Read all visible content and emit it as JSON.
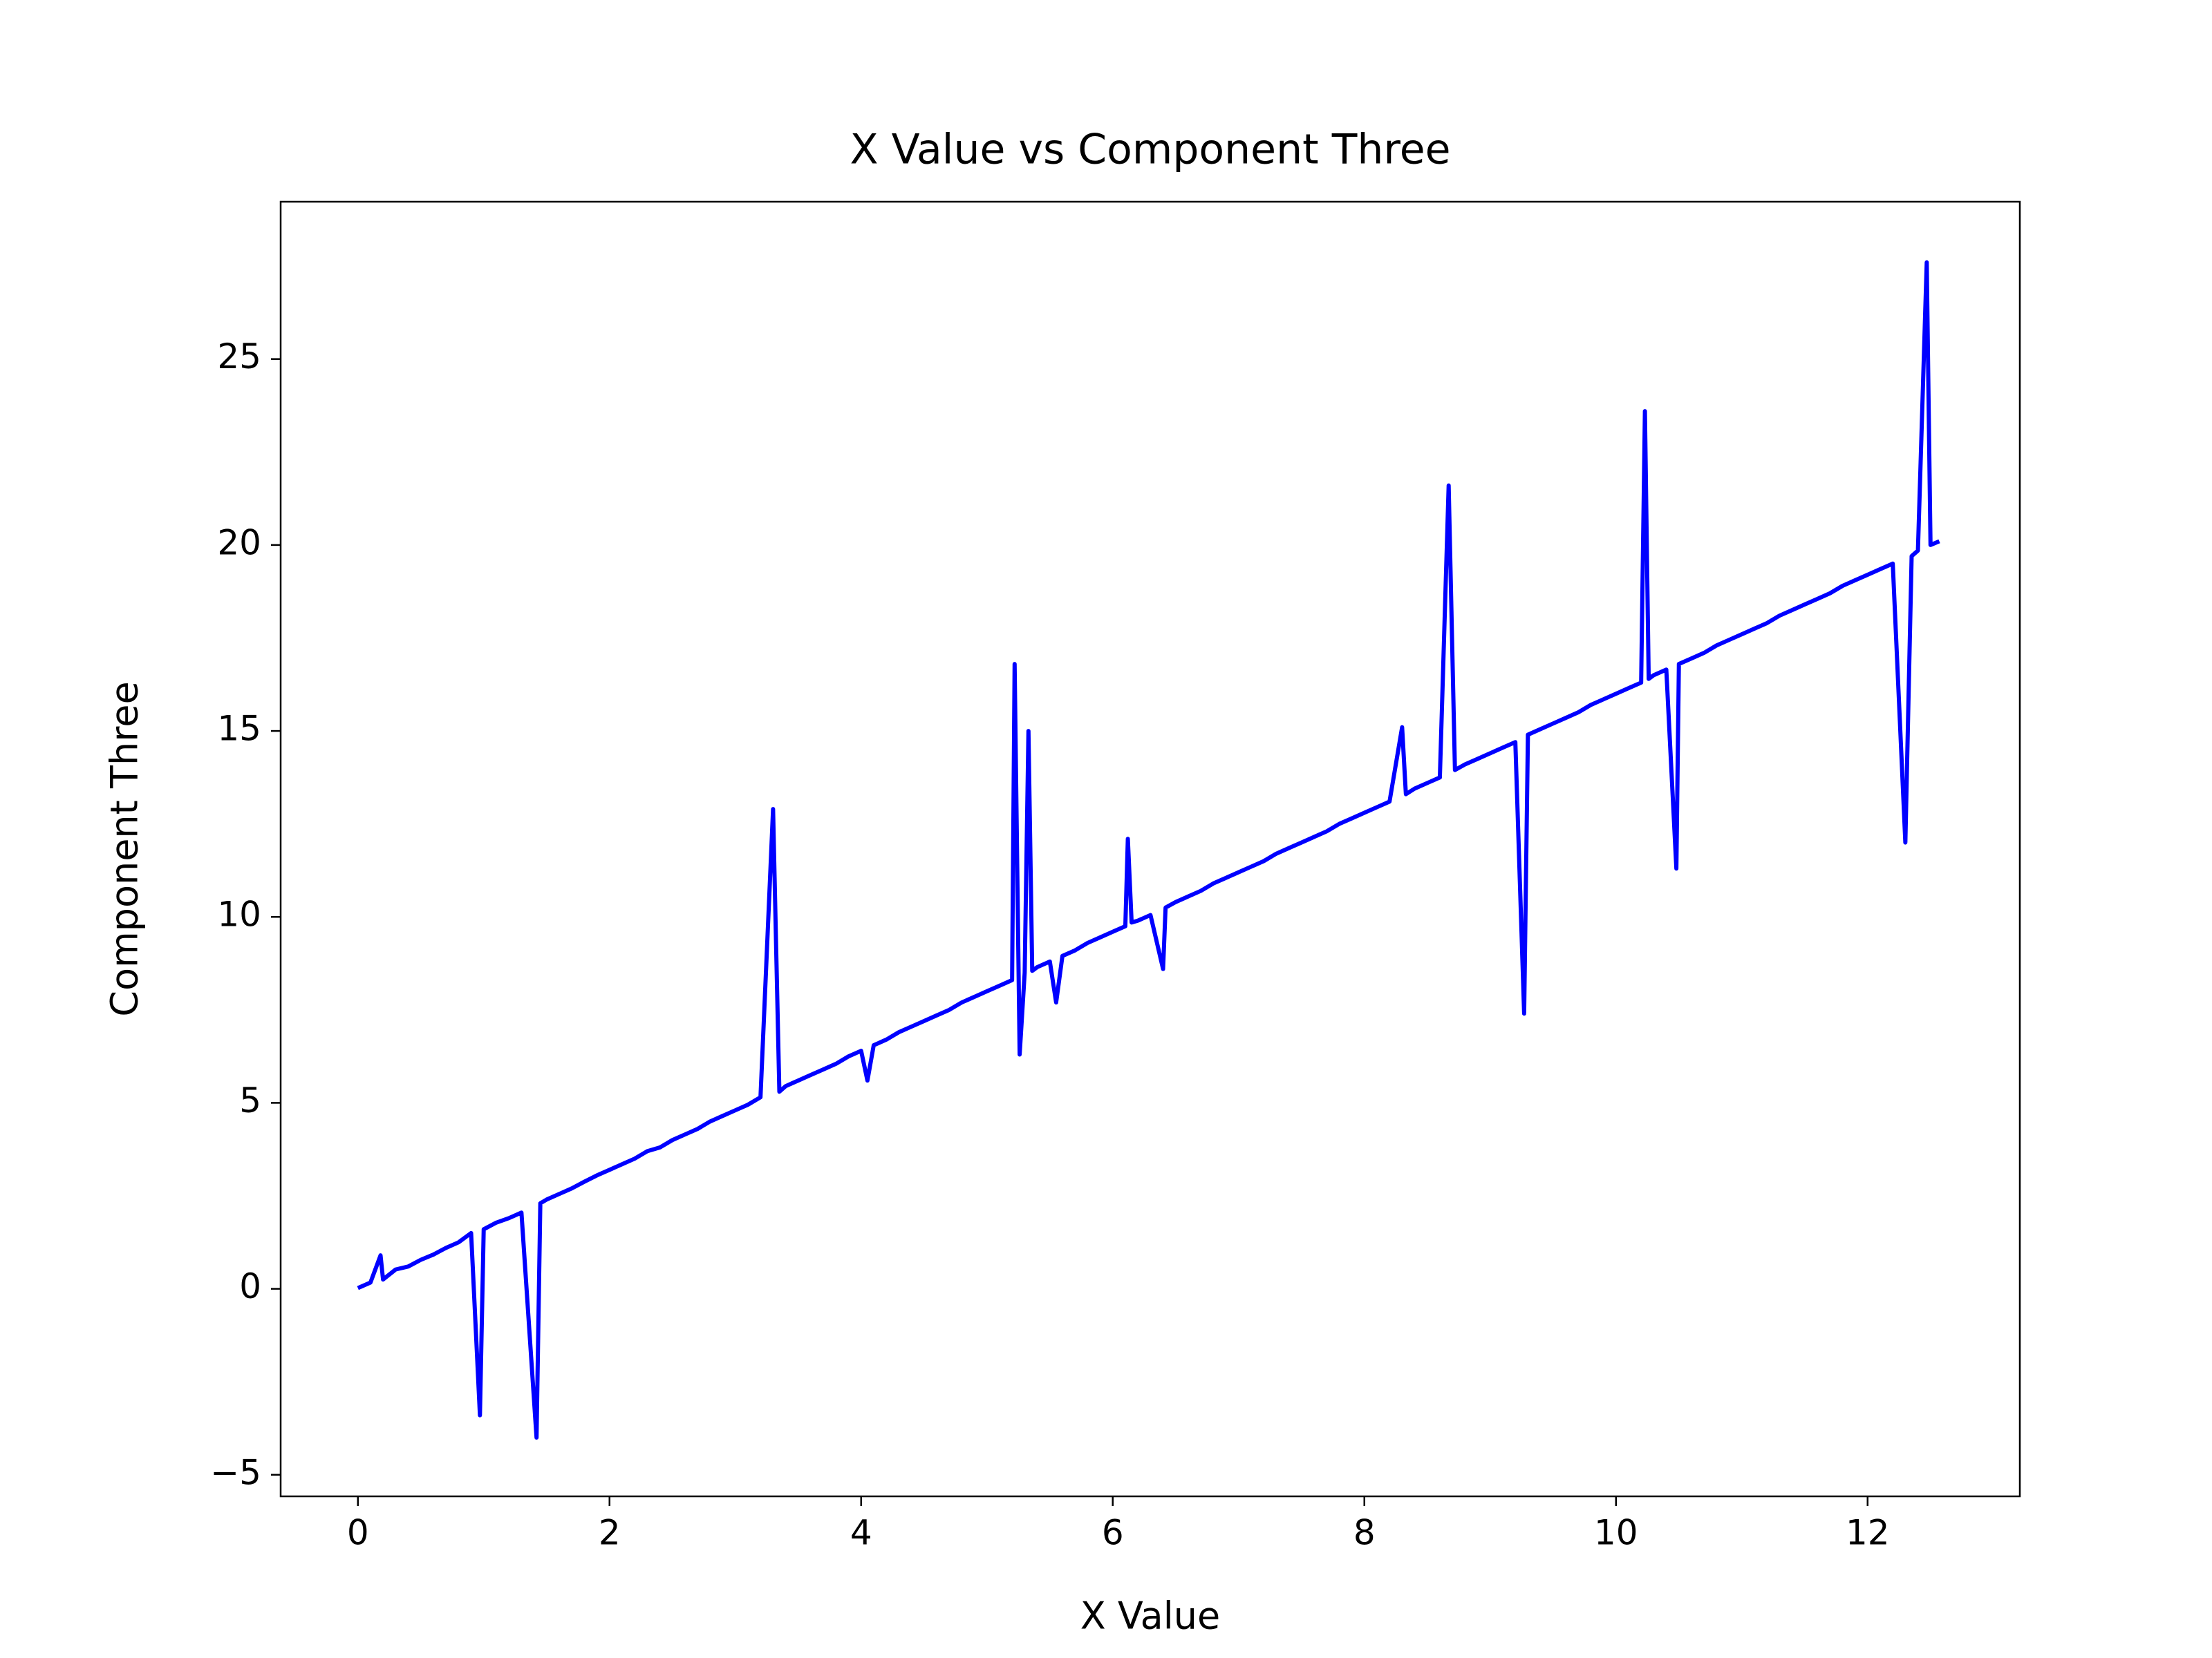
{
  "chart_data": {
    "type": "line",
    "title": "X Value vs Component Three",
    "xlabel": "X Value",
    "ylabel": "Component Three",
    "color": "#0000ff",
    "x": [
      0,
      0.1,
      0.18,
      0.2,
      0.3,
      0.4,
      0.5,
      0.6,
      0.7,
      0.8,
      0.9,
      0.97,
      1.0,
      1.1,
      1.2,
      1.3,
      1.42,
      1.45,
      1.5,
      1.6,
      1.7,
      1.8,
      1.9,
      2.0,
      2.1,
      2.2,
      2.3,
      2.4,
      2.5,
      2.6,
      2.7,
      2.8,
      2.9,
      3.0,
      3.1,
      3.2,
      3.3,
      3.35,
      3.4,
      3.5,
      3.6,
      3.7,
      3.8,
      3.9,
      4.0,
      4.05,
      4.1,
      4.2,
      4.3,
      4.4,
      4.5,
      4.6,
      4.7,
      4.8,
      4.9,
      5.0,
      5.1,
      5.2,
      5.22,
      5.26,
      5.3,
      5.33,
      5.36,
      5.4,
      5.5,
      5.55,
      5.6,
      5.7,
      5.8,
      5.9,
      6.0,
      6.1,
      6.12,
      6.15,
      6.2,
      6.3,
      6.4,
      6.42,
      6.5,
      6.6,
      6.7,
      6.8,
      6.9,
      7.0,
      7.1,
      7.2,
      7.3,
      7.4,
      7.5,
      7.6,
      7.7,
      7.8,
      7.9,
      8.0,
      8.1,
      8.2,
      8.3,
      8.33,
      8.4,
      8.5,
      8.6,
      8.67,
      8.72,
      8.8,
      8.9,
      9.0,
      9.1,
      9.2,
      9.27,
      9.3,
      9.4,
      9.5,
      9.6,
      9.7,
      9.8,
      9.9,
      10.0,
      10.1,
      10.2,
      10.23,
      10.26,
      10.3,
      10.4,
      10.48,
      10.5,
      10.6,
      10.7,
      10.8,
      10.9,
      11.0,
      11.1,
      11.2,
      11.3,
      11.4,
      11.5,
      11.6,
      11.7,
      11.8,
      11.9,
      12.0,
      12.1,
      12.2,
      12.3,
      12.35,
      12.4,
      12.47,
      12.5,
      12.57
    ],
    "values": [
      0.02,
      0.17,
      0.9,
      0.25,
      0.52,
      0.6,
      0.78,
      0.92,
      1.1,
      1.25,
      1.5,
      -3.4,
      1.6,
      1.78,
      1.9,
      2.05,
      -4.0,
      2.3,
      2.4,
      2.55,
      2.7,
      2.88,
      3.05,
      3.2,
      3.35,
      3.5,
      3.7,
      3.8,
      4.0,
      4.15,
      4.3,
      4.5,
      4.65,
      4.8,
      4.95,
      5.15,
      12.9,
      5.3,
      5.45,
      5.6,
      5.75,
      5.9,
      6.05,
      6.25,
      6.4,
      5.6,
      6.55,
      6.7,
      6.9,
      7.05,
      7.2,
      7.35,
      7.5,
      7.7,
      7.85,
      8.0,
      8.15,
      8.3,
      16.8,
      6.3,
      8.5,
      15.0,
      8.55,
      8.65,
      8.8,
      7.7,
      8.95,
      9.1,
      9.3,
      9.45,
      9.6,
      9.75,
      12.1,
      9.85,
      9.9,
      10.05,
      8.6,
      10.25,
      10.4,
      10.55,
      10.7,
      10.9,
      11.05,
      11.2,
      11.35,
      11.5,
      11.7,
      11.85,
      12.0,
      12.15,
      12.3,
      12.5,
      12.65,
      12.8,
      12.95,
      13.1,
      15.1,
      13.3,
      13.45,
      13.6,
      13.75,
      21.6,
      13.95,
      14.1,
      14.25,
      14.4,
      14.55,
      14.7,
      7.4,
      14.9,
      15.05,
      15.2,
      15.35,
      15.5,
      15.7,
      15.85,
      16.0,
      16.15,
      16.3,
      23.6,
      16.4,
      16.5,
      16.65,
      11.3,
      16.8,
      16.95,
      17.1,
      17.3,
      17.45,
      17.6,
      17.75,
      17.9,
      18.1,
      18.25,
      18.4,
      18.55,
      18.7,
      18.9,
      19.05,
      19.2,
      19.35,
      19.5,
      12.0,
      19.7,
      19.85,
      27.6,
      20.0,
      20.1
    ],
    "xlim": [
      -0.614,
      13.21
    ],
    "xticks": [
      0,
      2,
      4,
      6,
      8,
      10,
      12
    ],
    "ylim": [
      -5.58,
      29.23
    ],
    "yticks": [
      {
        "value": -5,
        "label": "−5"
      },
      0,
      5,
      10,
      15,
      20,
      25
    ],
    "grid": false
  }
}
